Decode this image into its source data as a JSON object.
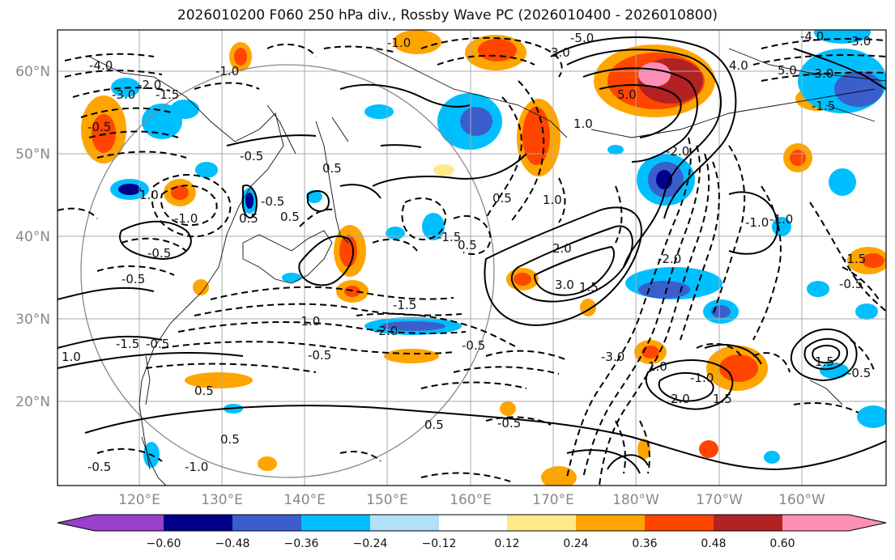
{
  "title": "2026010200 F060 250 hPa div., Rossby Wave PC (2026010400 - 2026010800)",
  "lat_ticks": [
    "60°N",
    "50°N",
    "40°N",
    "30°N",
    "20°N"
  ],
  "lon_ticks": [
    "120°E",
    "130°E",
    "140°E",
    "150°E",
    "160°E",
    "170°E",
    "180°W",
    "170°W",
    "160°W"
  ],
  "colorbar": {
    "ticks": [
      "−0.60",
      "−0.48",
      "−0.36",
      "−0.24",
      "−0.12",
      "0.12",
      "0.24",
      "0.36",
      "0.48",
      "0.60"
    ],
    "colors": [
      "#9a3fc9",
      "#00008b",
      "#3a5fcd",
      "#00bfff",
      "#b0e0fa",
      "#ffffff",
      "#ffe98a",
      "#ffa500",
      "#ff4500",
      "#b22222",
      "#ff8fb6"
    ]
  },
  "contour_labels": [
    "-4.0",
    "-1.0",
    "-3.0",
    "-2.0",
    "-1.5",
    "-0.5",
    "-1.0",
    "1.0",
    "-0.5",
    "0.5",
    "-1.0",
    "-0.5",
    "-0.5",
    "0.5",
    "0.5",
    "-0.5",
    "-1.5",
    "-2.0",
    "-1.0",
    "-0.5",
    "1.0",
    "-1.5",
    "-0.5",
    "0.5",
    "0.5",
    "-0.5",
    "-1.0",
    "0.5",
    "-0.5",
    "-0.5",
    "0.5",
    "1.0",
    "2.0",
    "3.0",
    "1.5",
    "-2.0",
    "-1.0",
    "-3.0",
    "1.0",
    "2.0",
    "-1.0",
    "1.5",
    "1.5",
    "-0.5",
    "-0.5",
    "-1.5",
    "5.0",
    "4.0",
    "-3.0",
    "-4.0",
    "-3.0",
    "-1.5",
    "3.0",
    "-5.0",
    "-2.0",
    "1.0",
    "5.0",
    "-1.0",
    "-1.5",
    "0.5"
  ]
}
